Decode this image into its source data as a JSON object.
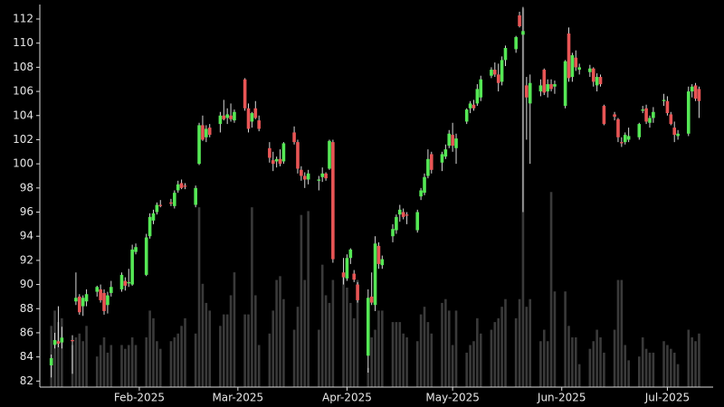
{
  "chart_data": {
    "type": "candlestick",
    "x": [
      "2025-01-07",
      "2025-01-08",
      "2025-01-09",
      "2025-01-10",
      "2025-01-13",
      "2025-01-14",
      "2025-01-15",
      "2025-01-16",
      "2025-01-17",
      "2025-01-20",
      "2025-01-21",
      "2025-01-22",
      "2025-01-23",
      "2025-01-24",
      "2025-01-27",
      "2025-01-28",
      "2025-01-29",
      "2025-01-30",
      "2025-01-31",
      "2025-02-03",
      "2025-02-04",
      "2025-02-05",
      "2025-02-06",
      "2025-02-07",
      "2025-02-10",
      "2025-02-11",
      "2025-02-12",
      "2025-02-13",
      "2025-02-14",
      "2025-02-17",
      "2025-02-18",
      "2025-02-19",
      "2025-02-20",
      "2025-02-21",
      "2025-02-24",
      "2025-02-25",
      "2025-02-26",
      "2025-02-27",
      "2025-02-28",
      "2025-03-03",
      "2025-03-04",
      "2025-03-05",
      "2025-03-06",
      "2025-03-07",
      "2025-03-10",
      "2025-03-11",
      "2025-03-12",
      "2025-03-13",
      "2025-03-14",
      "2025-03-17",
      "2025-03-18",
      "2025-03-19",
      "2025-03-20",
      "2025-03-21",
      "2025-03-24",
      "2025-03-25",
      "2025-03-26",
      "2025-03-27",
      "2025-03-28",
      "2025-03-31",
      "2025-04-01",
      "2025-04-02",
      "2025-04-03",
      "2025-04-04",
      "2025-04-07",
      "2025-04-08",
      "2025-04-09",
      "2025-04-10",
      "2025-04-11",
      "2025-04-14",
      "2025-04-15",
      "2025-04-16",
      "2025-04-17",
      "2025-04-18",
      "2025-04-21",
      "2025-04-22",
      "2025-04-23",
      "2025-04-24",
      "2025-04-25",
      "2025-04-28",
      "2025-04-29",
      "2025-04-30",
      "2025-05-01",
      "2025-05-02",
      "2025-05-05",
      "2025-05-06",
      "2025-05-07",
      "2025-05-08",
      "2025-05-09",
      "2025-05-12",
      "2025-05-13",
      "2025-05-14",
      "2025-05-15",
      "2025-05-16",
      "2025-05-19",
      "2025-05-20",
      "2025-05-21",
      "2025-05-22",
      "2025-05-23",
      "2025-05-26",
      "2025-05-27",
      "2025-05-28",
      "2025-05-29",
      "2025-05-30",
      "2025-06-02",
      "2025-06-03",
      "2025-06-04",
      "2025-06-05",
      "2025-06-06",
      "2025-06-09",
      "2025-06-10",
      "2025-06-11",
      "2025-06-12",
      "2025-06-13",
      "2025-06-16",
      "2025-06-17",
      "2025-06-18",
      "2025-06-19",
      "2025-06-20",
      "2025-06-23",
      "2025-06-24",
      "2025-06-25",
      "2025-06-26",
      "2025-06-27",
      "2025-06-30",
      "2025-07-01",
      "2025-07-02",
      "2025-07-03",
      "2025-07-04",
      "2025-07-07",
      "2025-07-08",
      "2025-07-09",
      "2025-07-10"
    ],
    "open": [
      83.3,
      85.0,
      85.3,
      85.2,
      85.4,
      88.6,
      89.0,
      88.2,
      88.6,
      89.4,
      89.6,
      89.3,
      88.3,
      89.3,
      89.6,
      90.3,
      90.1,
      90.0,
      92.7,
      90.8,
      94.0,
      95.3,
      96.0,
      96.6,
      96.8,
      96.5,
      97.8,
      98.4,
      98.2,
      96.6,
      100.0,
      103.2,
      102.2,
      103.0,
      103.3,
      104.0,
      103.8,
      104.0,
      103.6,
      107.0,
      104.6,
      103.5,
      104.6,
      103.6,
      101.3,
      100.3,
      100.2,
      100.4,
      100.2,
      102.6,
      101.8,
      99.5,
      99.0,
      98.7,
      98.6,
      98.9,
      99.2,
      99.6,
      101.8,
      91.0,
      90.5,
      92.2,
      90.9,
      90.0,
      84.1,
      89.0,
      88.3,
      93.2,
      91.6,
      94.0,
      94.5,
      95.8,
      96.0,
      95.8,
      94.5,
      97.3,
      97.6,
      99.0,
      100.8,
      100.1,
      100.6,
      101.5,
      102.4,
      101.3,
      103.5,
      104.6,
      104.9,
      105.0,
      105.5,
      107.3,
      107.8,
      107.4,
      106.8,
      108.6,
      109.5,
      112.3,
      110.7,
      106.5,
      105.0,
      106.0,
      107.8,
      106.0,
      106.6,
      106.4,
      104.8,
      110.8,
      107.2,
      108.8,
      107.8,
      107.6,
      107.9,
      106.5,
      107.2,
      104.8,
      104.1,
      103.7,
      101.8,
      101.8,
      102.0,
      102.2,
      104.4,
      104.6,
      103.4,
      103.8,
      105.2,
      105.2,
      104.1,
      103.0,
      102.3,
      102.5,
      106.0,
      106.5,
      106.2
    ],
    "high": [
      84.2,
      86.0,
      88.2,
      86.5,
      85.8,
      91.0,
      89.2,
      89.1,
      89.6,
      89.9,
      90.0,
      89.6,
      89.4,
      90.3,
      91.0,
      90.6,
      91.3,
      93.3,
      93.4,
      94.2,
      95.9,
      96.2,
      96.8,
      97.0,
      97.1,
      97.8,
      98.6,
      98.7,
      98.4,
      98.2,
      103.4,
      104.0,
      103.2,
      103.3,
      104.3,
      105.3,
      104.6,
      105.0,
      104.5,
      107.1,
      105.0,
      104.3,
      105.2,
      104.0,
      101.8,
      101.0,
      100.6,
      101.2,
      101.8,
      103.1,
      102.0,
      99.8,
      99.3,
      99.5,
      99.0,
      99.7,
      99.3,
      102.0,
      102.0,
      92.2,
      92.5,
      93.0,
      91.2,
      90.2,
      89.6,
      91.0,
      94.0,
      93.5,
      92.4,
      95.0,
      95.8,
      96.6,
      96.3,
      96.0,
      96.2,
      98.0,
      99.2,
      101.2,
      101.0,
      101.0,
      101.6,
      102.8,
      103.4,
      102.5,
      104.6,
      105.2,
      105.3,
      106.6,
      107.3,
      108.0,
      108.4,
      108.3,
      108.9,
      109.8,
      110.6,
      112.6,
      113.0,
      107.2,
      107.4,
      107.0,
      107.9,
      107.0,
      107.0,
      106.9,
      108.6,
      111.3,
      109.2,
      109.4,
      108.3,
      108.2,
      108.0,
      107.5,
      107.4,
      104.9,
      104.3,
      103.8,
      102.2,
      102.6,
      103.0,
      103.4,
      104.8,
      104.9,
      104.0,
      104.7,
      105.8,
      105.6,
      104.3,
      103.5,
      102.8,
      106.4,
      106.6,
      106.7,
      106.4
    ],
    "low": [
      82.3,
      84.7,
      84.8,
      84.7,
      82.6,
      88.3,
      87.5,
      87.4,
      88.2,
      89.0,
      88.5,
      87.5,
      87.6,
      89.0,
      89.4,
      89.5,
      89.8,
      89.9,
      92.5,
      90.7,
      93.8,
      95.0,
      95.8,
      96.4,
      96.5,
      96.3,
      97.6,
      97.9,
      97.9,
      96.4,
      99.9,
      101.9,
      101.8,
      102.2,
      102.6,
      103.6,
      103.3,
      103.5,
      103.4,
      104.4,
      102.6,
      103.0,
      103.7,
      102.7,
      100.1,
      99.4,
      99.7,
      99.8,
      100.0,
      101.6,
      99.2,
      98.6,
      98.0,
      98.3,
      97.8,
      98.5,
      98.6,
      99.5,
      91.8,
      90.0,
      90.3,
      91.7,
      90.2,
      88.5,
      82.7,
      88.3,
      87.8,
      91.3,
      91.3,
      93.5,
      94.2,
      95.2,
      95.4,
      95.0,
      94.3,
      97.0,
      97.4,
      98.8,
      99.2,
      99.4,
      100.4,
      101.3,
      101.0,
      100.0,
      103.3,
      104.2,
      104.4,
      104.8,
      105.2,
      107.1,
      107.2,
      106.0,
      106.5,
      108.1,
      109.2,
      111.3,
      96.0,
      102.0,
      100.0,
      105.6,
      105.7,
      105.5,
      106.0,
      105.8,
      104.6,
      106.8,
      106.8,
      107.7,
      107.4,
      107.2,
      106.4,
      106.0,
      106.4,
      103.2,
      103.6,
      101.8,
      101.4,
      101.6,
      101.8,
      102.0,
      104.2,
      103.3,
      103.0,
      103.4,
      104.8,
      104.0,
      103.2,
      101.8,
      102.0,
      102.3,
      105.5,
      105.2,
      103.8
    ],
    "close": [
      83.9,
      85.4,
      85.1,
      85.6,
      85.3,
      88.9,
      87.7,
      88.9,
      89.2,
      89.8,
      88.7,
      87.8,
      89.1,
      89.8,
      90.8,
      89.9,
      90.2,
      92.9,
      93.1,
      93.9,
      95.6,
      95.9,
      96.6,
      96.5,
      96.7,
      97.6,
      98.3,
      98.0,
      98.1,
      98.0,
      103.2,
      102.0,
      102.9,
      102.4,
      104.0,
      103.7,
      104.1,
      103.7,
      104.3,
      104.6,
      102.9,
      104.2,
      103.8,
      102.9,
      100.5,
      100.0,
      100.4,
      100.0,
      101.7,
      101.8,
      99.6,
      99.0,
      98.7,
      99.2,
      98.7,
      99.2,
      98.8,
      101.9,
      92.1,
      90.6,
      92.2,
      92.9,
      90.4,
      88.7,
      88.9,
      88.5,
      93.4,
      91.7,
      92.1,
      94.6,
      95.6,
      96.2,
      95.6,
      95.7,
      96.0,
      97.8,
      98.9,
      100.4,
      99.5,
      100.8,
      101.2,
      102.5,
      101.5,
      102.1,
      104.5,
      105.0,
      104.6,
      106.2,
      107.0,
      107.8,
      107.4,
      106.7,
      108.6,
      109.6,
      110.5,
      111.4,
      111.0,
      105.5,
      106.7,
      106.5,
      105.9,
      106.6,
      106.2,
      106.6,
      108.5,
      107.1,
      109.0,
      108.0,
      108.0,
      107.9,
      106.8,
      107.2,
      106.6,
      103.3,
      103.9,
      102.2,
      101.7,
      102.4,
      102.3,
      103.3,
      104.5,
      103.5,
      103.8,
      104.3,
      105.3,
      104.2,
      103.3,
      102.4,
      102.5,
      106.0,
      106.4,
      105.4,
      105.2
    ],
    "volume": [
      16,
      20,
      17,
      18,
      11,
      13,
      14,
      12,
      16,
      8,
      11,
      13,
      9,
      11,
      11,
      10,
      11,
      13,
      11,
      13,
      20,
      18,
      12,
      10,
      12,
      13,
      14,
      16,
      18,
      14,
      47,
      27,
      22,
      20,
      16,
      19,
      19,
      24,
      30,
      19,
      19,
      47,
      24,
      11,
      14,
      20,
      28,
      29,
      23,
      15,
      21,
      45,
      28,
      46,
      15,
      32,
      24,
      22,
      28,
      29,
      26,
      22,
      18,
      28,
      5,
      13,
      15,
      20,
      20,
      17,
      17,
      17,
      14,
      13,
      12,
      19,
      21,
      17,
      14,
      22,
      23,
      20,
      11,
      20,
      9,
      11,
      12,
      18,
      14,
      15,
      17,
      18,
      21,
      23,
      18,
      23,
      99,
      21,
      23,
      12,
      15,
      12,
      51,
      25,
      25,
      16,
      13,
      13,
      6,
      10,
      12,
      15,
      13,
      9,
      15,
      28,
      28,
      11,
      7,
      8,
      13,
      10,
      9,
      9,
      12,
      11,
      10,
      9,
      6,
      15,
      13,
      12,
      14
    ],
    "xlim": [
      "2025-01-04",
      "2025-07-14"
    ],
    "xticks": [
      {
        "value": "2025-02-01",
        "label": "Feb-2025"
      },
      {
        "value": "2025-03-01",
        "label": "Mar-2025"
      },
      {
        "value": "2025-04-01",
        "label": "Apr-2025"
      },
      {
        "value": "2025-05-01",
        "label": "May-2025"
      },
      {
        "value": "2025-06-01",
        "label": "Jun-2025"
      },
      {
        "value": "2025-07-01",
        "label": "Jul-2025"
      }
    ],
    "ylim": [
      81.5,
      113.2
    ],
    "yticks": [
      82,
      84,
      86,
      88,
      90,
      92,
      94,
      96,
      98,
      100,
      102,
      104,
      106,
      108,
      110,
      112
    ],
    "volume_lim": [
      0,
      100
    ],
    "up_color": "#55e855",
    "down_color": "#e85555",
    "volume_color": "#3a3a3a"
  }
}
